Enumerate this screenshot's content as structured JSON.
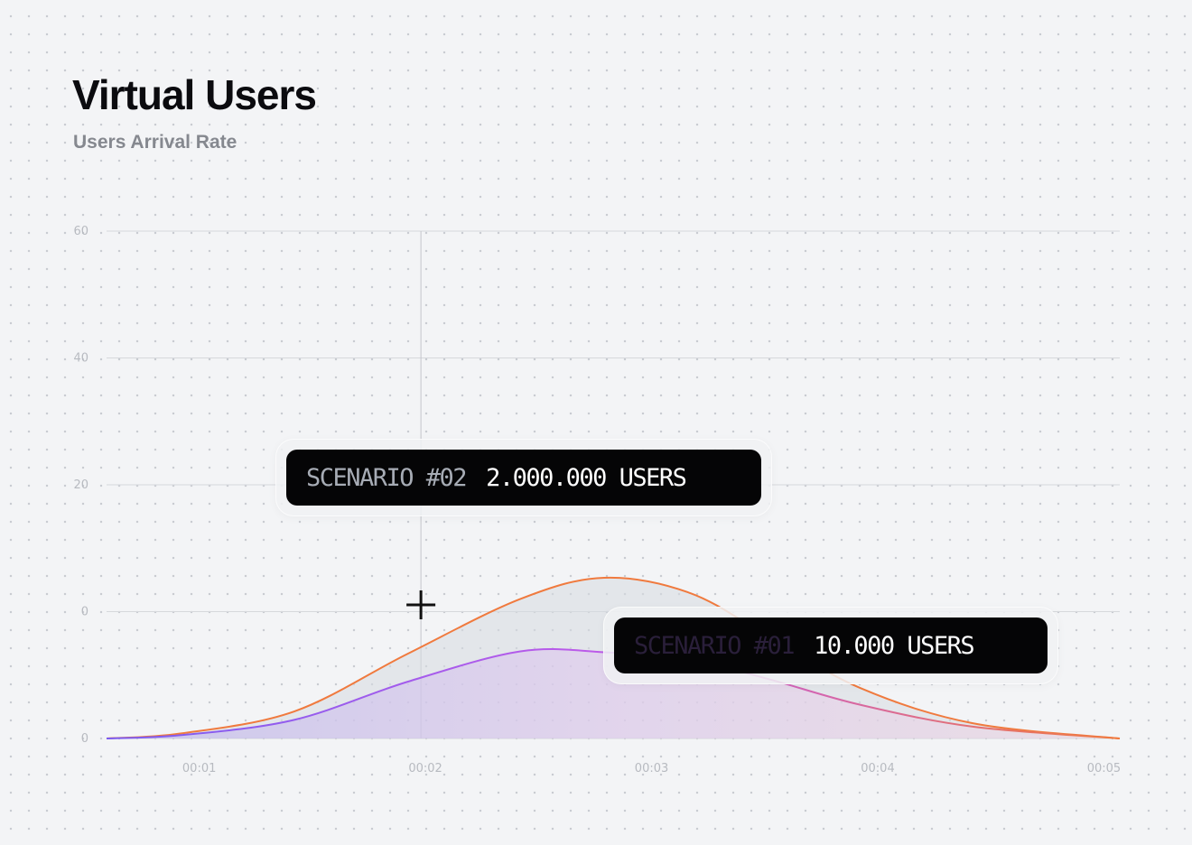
{
  "header": {
    "title": "Virtual Users",
    "subtitle": "Users Arrival Rate"
  },
  "tooltips": [
    {
      "scenario": "SCENARIO #02",
      "value": "2.000.000 USERS"
    },
    {
      "scenario": "SCENARIO #01",
      "value": "10.000 USERS"
    }
  ],
  "colors": {
    "scenario_02_line": "#f07a3e",
    "scenario_01_line_start": "#7b5cf0",
    "scenario_01_line_end": "#c65be8",
    "gridline": "#d6d8dc"
  },
  "chart_data": {
    "type": "area",
    "title": "Virtual Users",
    "subtitle": "Users Arrival Rate",
    "y_tick_labels": [
      "60",
      "40",
      "20",
      "0",
      "0"
    ],
    "x_tick_labels": [
      "00:01",
      "00:02",
      "00:03",
      "00:04",
      "00:05"
    ],
    "x": [
      0.67,
      1.0,
      1.5,
      2.0,
      2.5,
      2.87,
      3.25,
      3.6,
      4.0,
      4.5,
      5.15
    ],
    "series": [
      {
        "name": "SCENARIO #02",
        "values": [
          0,
          0.6,
          3.2,
          10.0,
          16.5,
          19.0,
          17.2,
          12.0,
          6.0,
          1.8,
          0
        ]
      },
      {
        "name": "SCENARIO #01",
        "values": [
          0,
          0.4,
          2.2,
          6.7,
          10.3,
          10.2,
          9.3,
          7.0,
          4.0,
          1.4,
          0
        ]
      }
    ],
    "xlim": [
      0.67,
      5.15
    ],
    "crosshair_x": 2.06,
    "grid": true,
    "legend": "none"
  }
}
